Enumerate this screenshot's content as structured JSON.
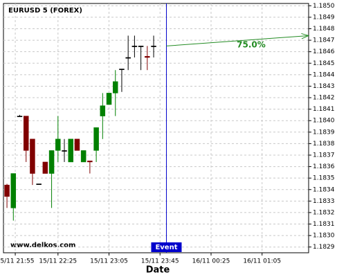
{
  "chart_data": {
    "type": "candlestick",
    "title": "EURUSD 5 (FOREX)",
    "x_label": "Date",
    "watermark": "www.delkos.com",
    "event_label": "Event",
    "event_x": 25,
    "annotation": "75.0%",
    "arrow": {
      "from": [
        25,
        1.18465
      ],
      "to": [
        47.3,
        1.18474
      ]
    },
    "up_color": "#008000",
    "down_color": "#800000",
    "event_color": "#0000cc",
    "arrow_color": "#228b22",
    "grid": true,
    "xlim": [
      -0.55,
      47.3
    ],
    "xticks": [
      {
        "value": 1.3,
        "label": "15/11 21:55"
      },
      {
        "value": 8,
        "label": "15/11 22:25"
      },
      {
        "value": 16,
        "label": "15/11 23:05"
      },
      {
        "value": 24,
        "label": "15/11 23:45"
      },
      {
        "value": 32,
        "label": "16/11 00:25"
      },
      {
        "value": 40,
        "label": "16/11 01:05"
      }
    ],
    "ylim": [
      1.18285,
      1.18502
    ],
    "yticks": [
      1.1829,
      {
        "value": 1.183,
        "label": "1.1830"
      },
      1.1831,
      1.1832,
      1.1833,
      1.1834,
      1.1835,
      1.1836,
      1.1837,
      1.1838,
      1.1839,
      {
        "value": 1.184,
        "label": "1.1840"
      },
      1.1841,
      1.1842,
      1.1843,
      1.1844,
      1.1845,
      1.1846,
      1.1847,
      1.1848,
      1.1849,
      {
        "value": 1.185,
        "label": "1.1850"
      }
    ],
    "open": [
      1.18344,
      1.18324,
      1.18404,
      1.18404,
      1.18384,
      1.18345,
      1.18364,
      1.18354,
      1.18374,
      1.18374,
      1.18364,
      1.18384,
      1.18364,
      1.18365,
      1.18374,
      1.18404,
      1.18414,
      1.18424,
      1.18445,
      1.18455,
      1.18465,
      1.18465,
      1.18456,
      1.18465
    ],
    "high": [
      1.18345,
      1.18354,
      1.18405,
      1.18404,
      1.18384,
      1.18345,
      1.18364,
      1.18374,
      1.18404,
      1.18384,
      1.18384,
      1.18384,
      1.18374,
      1.18364,
      1.18394,
      1.18424,
      1.18424,
      1.18444,
      1.18445,
      1.18474,
      1.18474,
      1.18465,
      1.18465,
      1.18474
    ],
    "low": [
      1.18324,
      1.18313,
      1.18404,
      1.18364,
      1.18344,
      1.18345,
      1.18354,
      1.18324,
      1.18364,
      1.18364,
      1.18364,
      1.18374,
      1.18364,
      1.18354,
      1.18364,
      1.18384,
      1.18414,
      1.18404,
      1.18425,
      1.18444,
      1.18455,
      1.18444,
      1.18444,
      1.18455
    ],
    "close": [
      1.18334,
      1.18354,
      1.18404,
      1.18374,
      1.18354,
      1.18345,
      1.18354,
      1.18374,
      1.18384,
      1.18374,
      1.18384,
      1.18374,
      1.18374,
      1.18364,
      1.18394,
      1.18413,
      1.18424,
      1.18434,
      1.18445,
      1.18455,
      1.18465,
      1.18465,
      1.18455,
      1.18465
    ]
  }
}
